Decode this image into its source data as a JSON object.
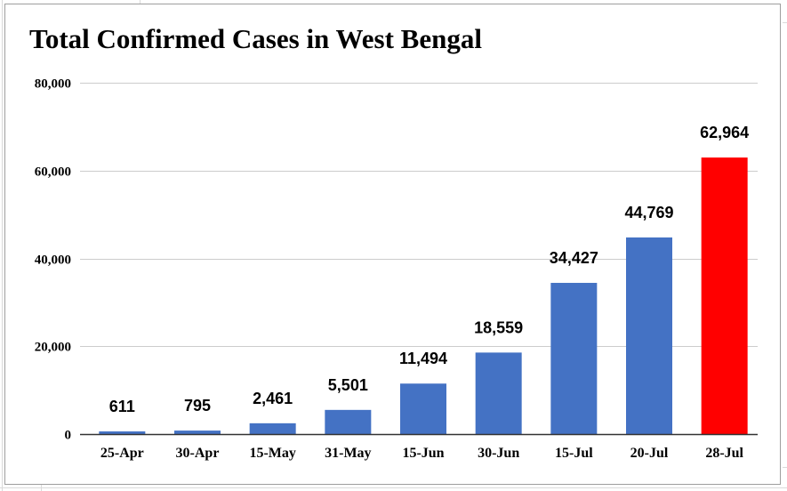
{
  "chart_data": {
    "type": "bar",
    "title": "Total Confirmed Cases in West Bengal",
    "xlabel": "",
    "ylabel": "",
    "categories": [
      "25-Apr",
      "30-Apr",
      "15-May",
      "31-May",
      "15-Jun",
      "30-Jun",
      "15-Jul",
      "20-Jul",
      "28-Jul"
    ],
    "values": [
      611,
      795,
      2461,
      5501,
      11494,
      18559,
      34427,
      44769,
      62964
    ],
    "data_labels": [
      "611",
      "795",
      "2,461",
      "5,501",
      "11,494",
      "18,559",
      "34,427",
      "44,769",
      "62,964"
    ],
    "ylim": [
      0,
      80000
    ],
    "yticks": [
      0,
      20000,
      40000,
      60000,
      80000
    ],
    "ytick_labels": [
      "0",
      "20,000",
      "40,000",
      "60,000",
      "80,000"
    ],
    "grid": true,
    "legend": "none",
    "colors": {
      "default": "#4472c4",
      "highlight": "#ff0000",
      "highlight_index": 8
    }
  }
}
